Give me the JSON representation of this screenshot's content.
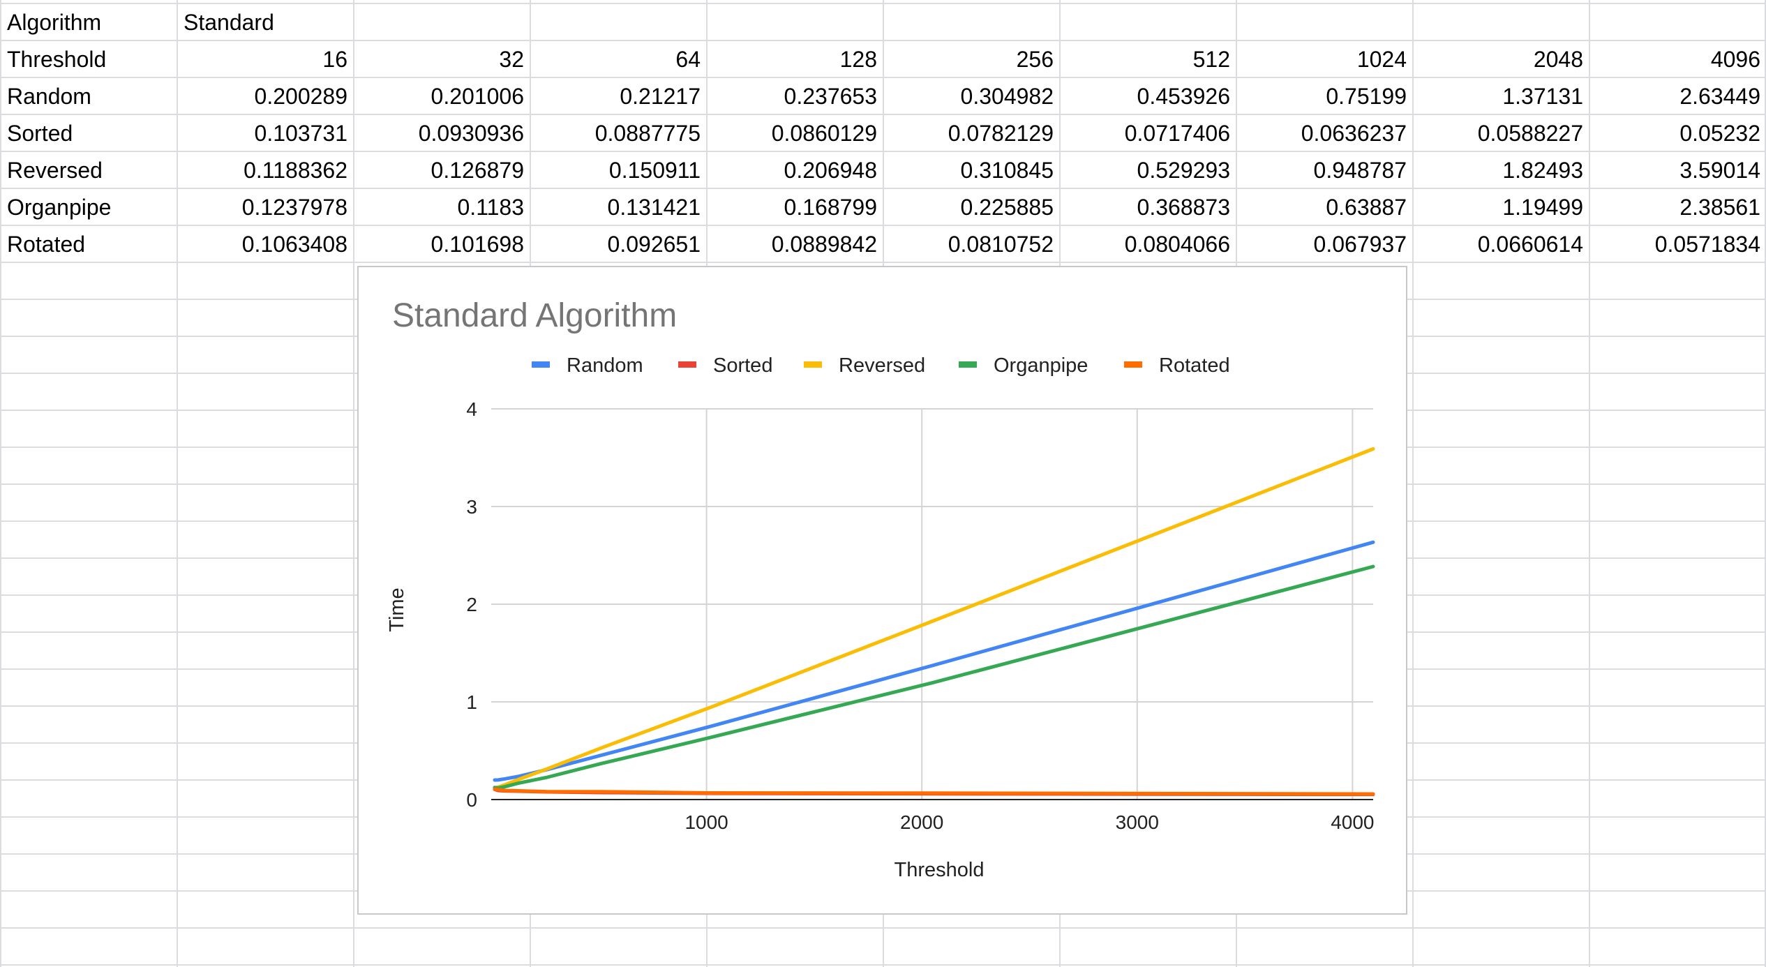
{
  "spreadsheet": {
    "rows": [
      [
        "Algorithm",
        "Standard",
        "",
        "",
        "",
        "",
        "",
        "",
        "",
        ""
      ],
      [
        "Threshold",
        "16",
        "32",
        "64",
        "128",
        "256",
        "512",
        "1024",
        "2048",
        "4096"
      ],
      [
        "Random",
        "0.200289",
        "0.201006",
        "0.21217",
        "0.237653",
        "0.304982",
        "0.453926",
        "0.75199",
        "1.37131",
        "2.63449"
      ],
      [
        "Sorted",
        "0.103731",
        "0.0930936",
        "0.0887775",
        "0.0860129",
        "0.0782129",
        "0.0717406",
        "0.0636237",
        "0.0588227",
        "0.05232"
      ],
      [
        "Reversed",
        "0.1188362",
        "0.126879",
        "0.150911",
        "0.206948",
        "0.310845",
        "0.529293",
        "0.948787",
        "1.82493",
        "3.59014"
      ],
      [
        "Organpipe",
        "0.1237978",
        "0.1183",
        "0.131421",
        "0.168799",
        "0.225885",
        "0.368873",
        "0.63887",
        "1.19499",
        "2.38561"
      ],
      [
        "Rotated",
        "0.1063408",
        "0.101698",
        "0.092651",
        "0.0889842",
        "0.0810752",
        "0.0804066",
        "0.067937",
        "0.0660614",
        "0.0571834"
      ]
    ]
  },
  "chart_data": {
    "type": "line",
    "title": "Standard Algorithm",
    "xlabel": "Threshold",
    "ylabel": "Time",
    "x": [
      16,
      32,
      64,
      128,
      256,
      512,
      1024,
      2048,
      4096
    ],
    "xlim": [
      0,
      4096
    ],
    "ylim": [
      0,
      4
    ],
    "xticks": [
      1000,
      2000,
      3000,
      4000
    ],
    "yticks": [
      0,
      1,
      2,
      3,
      4
    ],
    "grid": true,
    "legend_position": "top",
    "series": [
      {
        "name": "Random",
        "color": "#4285f4",
        "values": [
          0.200289,
          0.201006,
          0.21217,
          0.237653,
          0.304982,
          0.453926,
          0.75199,
          1.37131,
          2.63449
        ]
      },
      {
        "name": "Sorted",
        "color": "#ea4335",
        "values": [
          0.103731,
          0.0930936,
          0.0887775,
          0.0860129,
          0.0782129,
          0.0717406,
          0.0636237,
          0.0588227,
          0.05232
        ]
      },
      {
        "name": "Reversed",
        "color": "#fbbc04",
        "values": [
          0.1188362,
          0.126879,
          0.150911,
          0.206948,
          0.310845,
          0.529293,
          0.948787,
          1.82493,
          3.59014
        ]
      },
      {
        "name": "Organpipe",
        "color": "#34a853",
        "values": [
          0.1237978,
          0.1183,
          0.131421,
          0.168799,
          0.225885,
          0.368873,
          0.63887,
          1.19499,
          2.38561
        ]
      },
      {
        "name": "Rotated",
        "color": "#ff6d01",
        "values": [
          0.1063408,
          0.101698,
          0.092651,
          0.0889842,
          0.0810752,
          0.0804066,
          0.067937,
          0.0660614,
          0.0571834
        ]
      }
    ]
  }
}
